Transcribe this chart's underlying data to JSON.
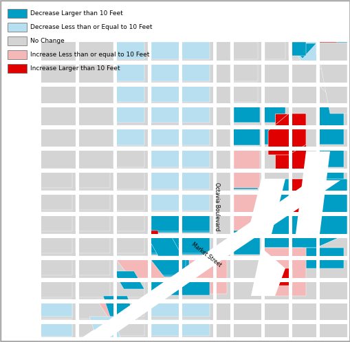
{
  "background_color": "#ffffff",
  "legend_items": [
    {
      "label": "Decrease Larger than 10 Feet",
      "color": "#009dc4"
    },
    {
      "label": "Decrease Less than or Equal to 10 Feet",
      "color": "#b8dff0"
    },
    {
      "label": "No Change",
      "color": "#d4d4d4"
    },
    {
      "label": "Increase Less than or equal to 10 Feet",
      "color": "#f5b8b8"
    },
    {
      "label": "Increase Larger than 10 Feet",
      "color": "#e00000"
    }
  ],
  "colors": {
    "DL": "#009dc4",
    "DS": "#b8dff0",
    "NC": "#d4d4d4",
    "IS": "#f5b8b8",
    "IL": "#e00000",
    "W": "#ffffff"
  }
}
